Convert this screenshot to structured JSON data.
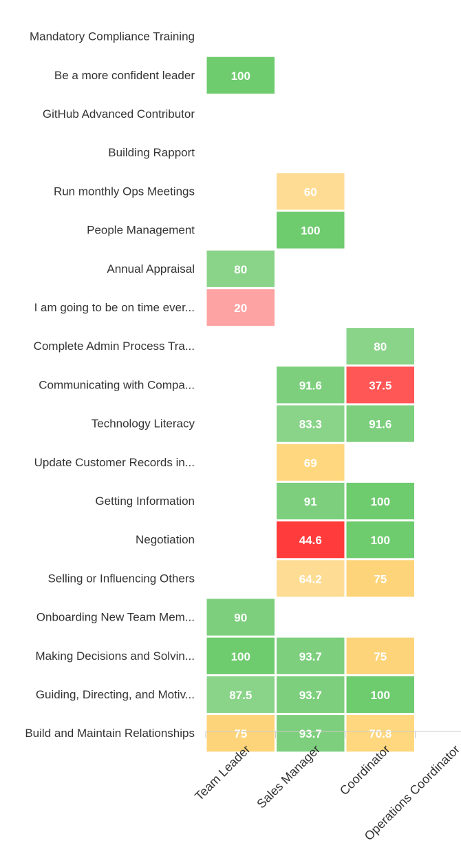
{
  "chart_data": {
    "type": "heatmap",
    "title": "",
    "xlabel": "",
    "ylabel": "",
    "columns": [
      "Team Leader",
      "Sales Manager",
      "Coordinator",
      "Operations Coordinator"
    ],
    "rows": [
      "Mandatory Compliance Training",
      "Be a more confident leader",
      "GitHub Advanced Contributor",
      "Building Rapport",
      "Run monthly Ops Meetings",
      "People Management",
      "Annual Appraisal",
      "I am going to be on time ever...",
      "Complete Admin Process Tra...",
      "Communicating with Compa...",
      "Technology Literacy",
      "Update Customer Records in...",
      "Getting Information",
      "Negotiation",
      "Selling or Influencing Others",
      "Onboarding New Team Mem...",
      "Making Decisions and Solvin...",
      "Guiding, Directing, and Motiv...",
      "Build and Maintain Relationships"
    ],
    "values": [
      [
        null,
        null,
        null,
        null
      ],
      [
        100,
        null,
        null,
        null
      ],
      [
        null,
        null,
        null,
        null
      ],
      [
        null,
        null,
        null,
        null
      ],
      [
        null,
        60,
        null,
        null
      ],
      [
        null,
        100,
        null,
        null
      ],
      [
        80,
        null,
        null,
        null
      ],
      [
        20,
        null,
        null,
        null
      ],
      [
        null,
        null,
        80,
        null
      ],
      [
        null,
        91.6,
        37.5,
        null
      ],
      [
        null,
        83.3,
        91.6,
        null
      ],
      [
        null,
        69,
        null,
        null
      ],
      [
        null,
        91,
        100,
        null
      ],
      [
        null,
        44.6,
        100,
        null
      ],
      [
        null,
        64.2,
        75,
        null
      ],
      [
        90,
        null,
        null,
        null
      ],
      [
        100,
        93.7,
        75,
        null
      ],
      [
        87.5,
        93.7,
        100,
        null
      ],
      [
        75,
        93.7,
        70.8,
        null
      ]
    ],
    "value_range": [
      0,
      100
    ],
    "colors": {
      "very_low": "#fea3a3",
      "low": "#ff4d4d",
      "critical": "#ff3b3b",
      "mid_light": "#fedc94",
      "mid": "#fed47a",
      "high": "#8ad48a",
      "very_high": "#6ecb6e",
      "axis": "#cccccc",
      "text": "#333333",
      "cell_text": "#ffffff"
    },
    "legend": "none",
    "grid": false
  }
}
